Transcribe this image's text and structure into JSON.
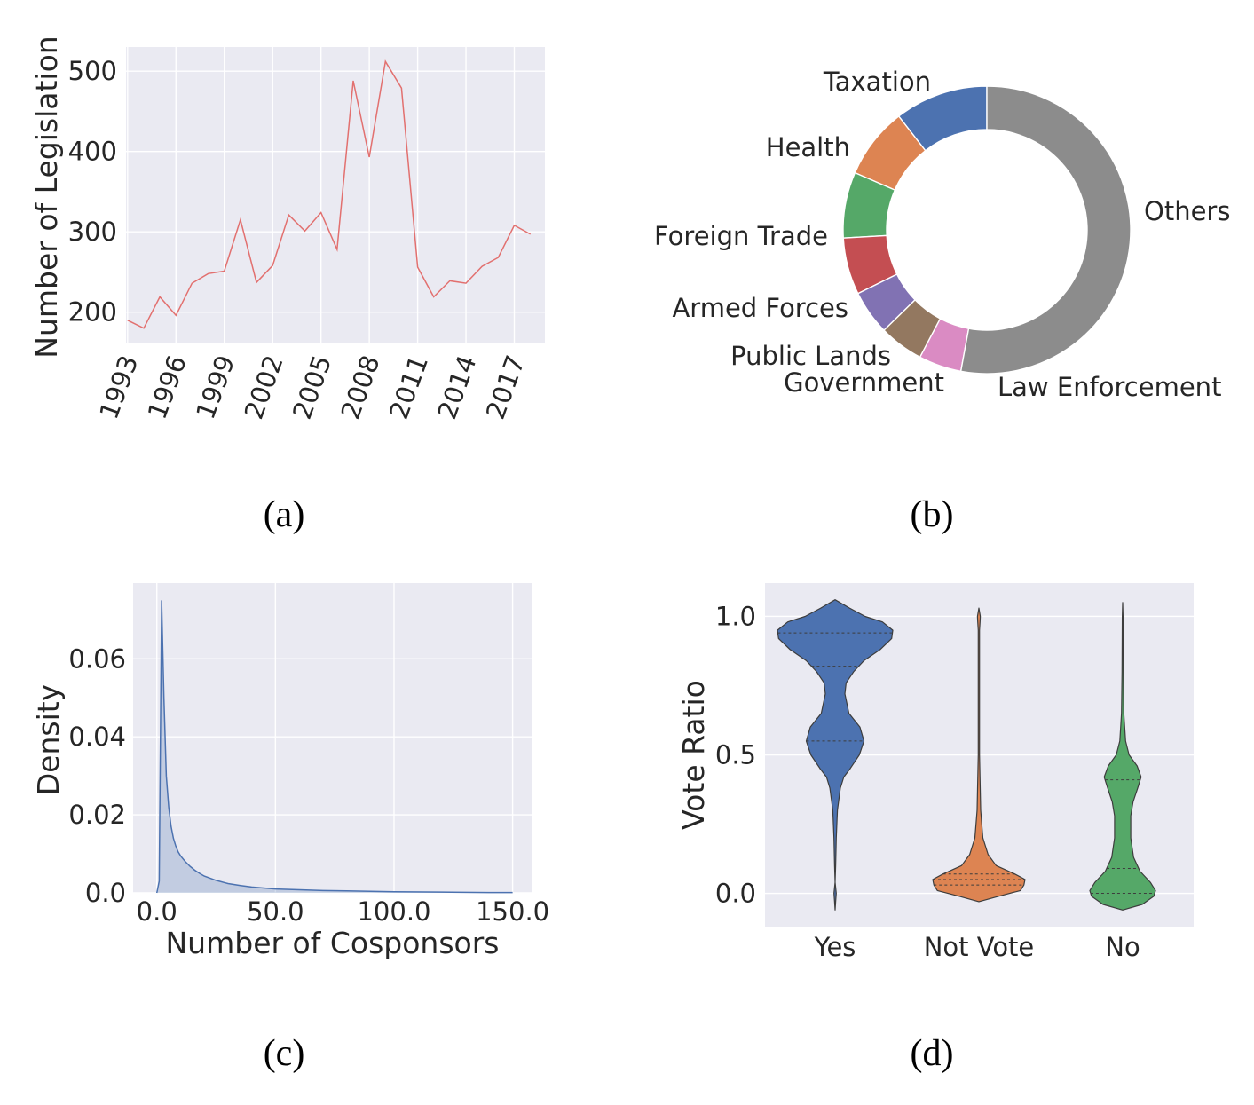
{
  "chart_data": [
    {
      "id": "a",
      "type": "line",
      "caption": "(a)",
      "ylabel": "Number of Legislation",
      "xlabel": "",
      "x": [
        1993,
        1994,
        1995,
        1996,
        1997,
        1998,
        1999,
        2000,
        2001,
        2002,
        2003,
        2004,
        2005,
        2006,
        2007,
        2008,
        2009,
        2010,
        2011,
        2012,
        2013,
        2014,
        2015,
        2016,
        2017,
        2018
      ],
      "values": [
        190,
        180,
        219,
        196,
        236,
        248,
        251,
        315,
        237,
        258,
        321,
        301,
        324,
        278,
        488,
        393,
        512,
        479,
        256,
        219,
        239,
        236,
        257,
        268,
        308,
        297
      ],
      "xticks": [
        "1993",
        "1996",
        "1999",
        "2002",
        "2005",
        "2008",
        "2011",
        "2014",
        "2017"
      ],
      "yticks": [
        "200",
        "300",
        "400",
        "500"
      ],
      "xlim": [
        1992.9,
        2018.9
      ],
      "ylim": [
        161,
        530
      ],
      "grid": true,
      "line_color": "#e2706f"
    },
    {
      "id": "b",
      "type": "pie",
      "caption": "(b)",
      "donut": true,
      "categories": [
        "Taxation",
        "Health",
        "Foreign Trade",
        "Armed Forces",
        "Public Lands",
        "Government",
        "Law Enforcement",
        "Others"
      ],
      "values": [
        10.5,
        8.0,
        7.4,
        6.4,
        5.0,
        5.0,
        4.8,
        52.9
      ],
      "colors": [
        "#4c72b0",
        "#dd8452",
        "#55a868",
        "#c44e52",
        "#8172b3",
        "#937860",
        "#da8bc3",
        "#8c8c8c"
      ],
      "label_positions": [
        "outside",
        "outside",
        "outside",
        "outside",
        "outside",
        "outside",
        "outside",
        "outside"
      ]
    },
    {
      "id": "c",
      "type": "area",
      "caption": "(c)",
      "xlabel": "Number of Cosponsors",
      "ylabel": "Density",
      "x": [
        0,
        1,
        2,
        3,
        4,
        5,
        6,
        7,
        8,
        9,
        10,
        12,
        14,
        16,
        18,
        20,
        25,
        30,
        35,
        40,
        50,
        60,
        70,
        80,
        100,
        120,
        140,
        150
      ],
      "values": [
        0.0,
        0.003,
        0.075,
        0.05,
        0.03,
        0.022,
        0.017,
        0.014,
        0.012,
        0.0105,
        0.0095,
        0.008,
        0.0068,
        0.0058,
        0.005,
        0.0043,
        0.0032,
        0.0024,
        0.0019,
        0.0015,
        0.001,
        0.0008,
        0.0006,
        0.0005,
        0.0003,
        0.0002,
        0.0001,
        0.0001
      ],
      "xticks": [
        "0.0",
        "50.0",
        "100.0",
        "150.0"
      ],
      "yticks": [
        "0.0",
        "0.02",
        "0.04",
        "0.06"
      ],
      "xlim": [
        -10,
        158
      ],
      "ylim": [
        0,
        0.076
      ],
      "grid": true,
      "color": "#4c72b0"
    },
    {
      "id": "d",
      "type": "violin",
      "caption": "(d)",
      "ylabel": "Vote Ratio",
      "categories": [
        "Yes",
        "Not Vote",
        "No"
      ],
      "yticks": [
        "0.0",
        "0.5",
        "1.0"
      ],
      "ylim": [
        -0.12,
        1.12
      ],
      "grid": true,
      "series": [
        {
          "name": "Yes",
          "color": "#4c72b0",
          "profile": [
            [
              -0.06,
              0.0
            ],
            [
              -0.03,
              0.01
            ],
            [
              0.0,
              0.02
            ],
            [
              0.04,
              0.0
            ],
            [
              0.1,
              0.01
            ],
            [
              0.2,
              0.02
            ],
            [
              0.3,
              0.04
            ],
            [
              0.38,
              0.09
            ],
            [
              0.42,
              0.15
            ],
            [
              0.45,
              0.26
            ],
            [
              0.5,
              0.42
            ],
            [
              0.55,
              0.5
            ],
            [
              0.6,
              0.43
            ],
            [
              0.65,
              0.24
            ],
            [
              0.72,
              0.17
            ],
            [
              0.76,
              0.19
            ],
            [
              0.8,
              0.32
            ],
            [
              0.84,
              0.5
            ],
            [
              0.88,
              0.78
            ],
            [
              0.92,
              0.98
            ],
            [
              0.95,
              1.0
            ],
            [
              0.98,
              0.82
            ],
            [
              1.0,
              0.52
            ],
            [
              1.03,
              0.25
            ],
            [
              1.06,
              0.0
            ]
          ],
          "quartiles": [
            0.55,
            0.82,
            0.94
          ]
        },
        {
          "name": "Not Vote",
          "color": "#dd8452",
          "profile": [
            [
              -0.03,
              0.0
            ],
            [
              -0.01,
              0.35
            ],
            [
              0.01,
              0.72
            ],
            [
              0.03,
              0.78
            ],
            [
              0.05,
              0.8
            ],
            [
              0.07,
              0.62
            ],
            [
              0.1,
              0.3
            ],
            [
              0.14,
              0.16
            ],
            [
              0.2,
              0.07
            ],
            [
              0.3,
              0.03
            ],
            [
              0.5,
              0.01
            ],
            [
              0.8,
              0.01
            ],
            [
              0.95,
              0.01
            ],
            [
              0.98,
              0.02
            ],
            [
              1.0,
              0.025
            ],
            [
              1.03,
              0.0
            ]
          ],
          "quartiles": [
            0.03,
            0.05,
            0.07
          ]
        },
        {
          "name": "No",
          "color": "#55a868",
          "profile": [
            [
              -0.06,
              0.0
            ],
            [
              -0.04,
              0.34
            ],
            [
              -0.01,
              0.54
            ],
            [
              0.01,
              0.57
            ],
            [
              0.04,
              0.48
            ],
            [
              0.08,
              0.3
            ],
            [
              0.13,
              0.19
            ],
            [
              0.2,
              0.14
            ],
            [
              0.28,
              0.14
            ],
            [
              0.33,
              0.18
            ],
            [
              0.38,
              0.26
            ],
            [
              0.42,
              0.32
            ],
            [
              0.46,
              0.25
            ],
            [
              0.5,
              0.11
            ],
            [
              0.55,
              0.05
            ],
            [
              0.65,
              0.02
            ],
            [
              0.8,
              0.01
            ],
            [
              1.0,
              0.006
            ],
            [
              1.05,
              0.0
            ]
          ],
          "quartiles": [
            0.0,
            0.09,
            0.41
          ]
        }
      ]
    }
  ]
}
